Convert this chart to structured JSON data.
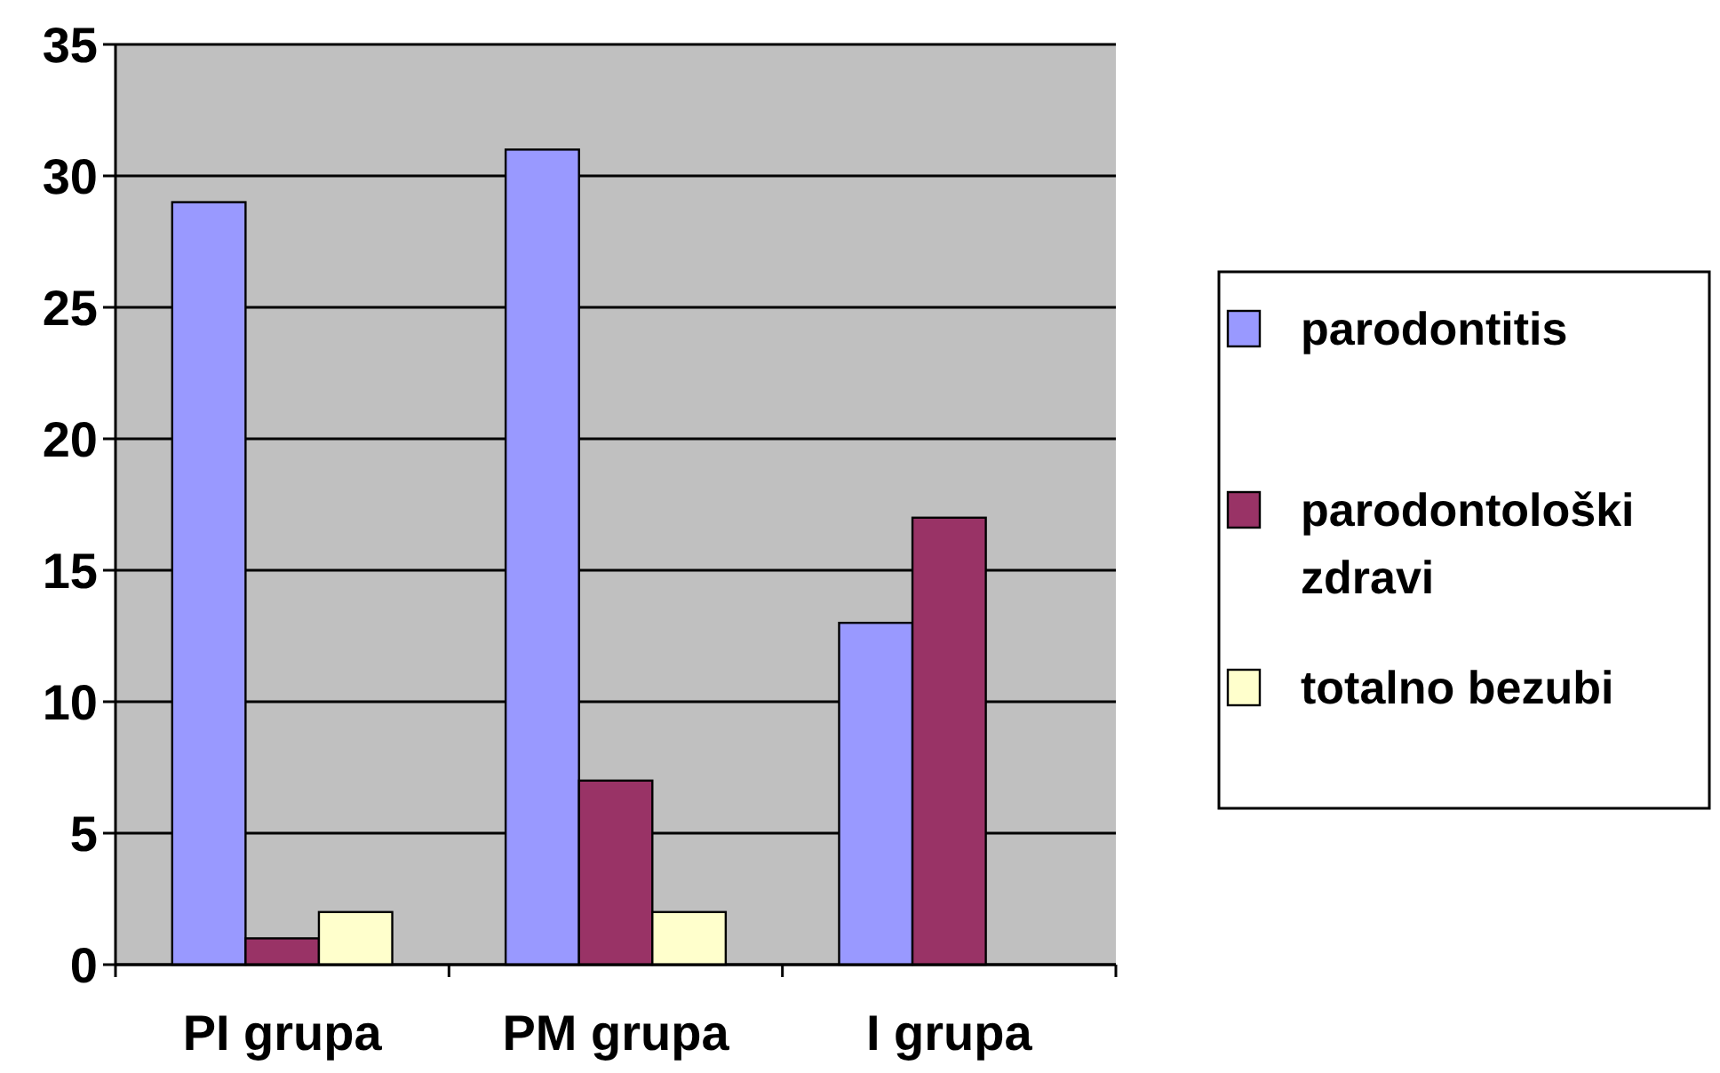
{
  "chart_data": {
    "type": "bar",
    "categories": [
      "PI grupa",
      "PM grupa",
      "I grupa"
    ],
    "series": [
      {
        "name": "parodontitis",
        "color": "#9999ff",
        "values": [
          29,
          31,
          13
        ]
      },
      {
        "name": "parodontološki zdravi",
        "color": "#993366",
        "values": [
          1,
          7,
          17
        ]
      },
      {
        "name": "totalno bezubi",
        "color": "#ffffcc",
        "values": [
          2,
          2,
          0
        ]
      }
    ],
    "ylim": [
      0,
      35
    ],
    "yticks": [
      0,
      5,
      10,
      15,
      20,
      25,
      30,
      35
    ],
    "grid": "y",
    "legend": "right"
  }
}
